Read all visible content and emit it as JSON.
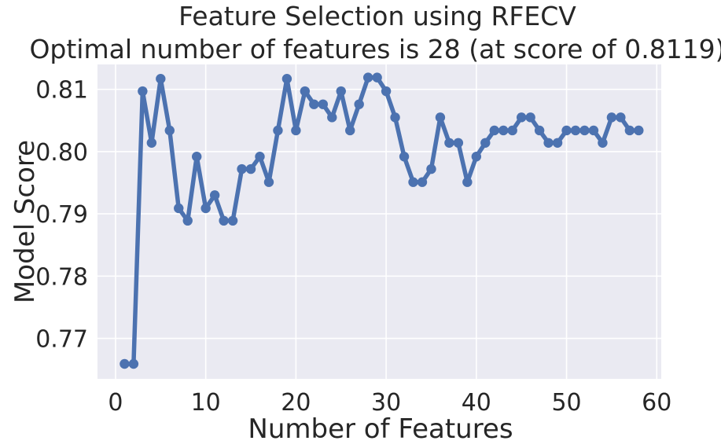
{
  "chart_data": {
    "type": "line",
    "title": "Feature Selection using RFECV",
    "subtitle": "Optimal number of features is 28 (at score of 0.8119)",
    "xlabel": "Number of Features",
    "ylabel": "Model Score",
    "xlim": [
      -2,
      60.5
    ],
    "ylim": [
      0.7635,
      0.814
    ],
    "xticks": [
      0,
      10,
      20,
      30,
      40,
      50,
      60
    ],
    "xtick_labels": [
      "0",
      "10",
      "20",
      "30",
      "40",
      "50",
      "60"
    ],
    "yticks": [
      0.77,
      0.78,
      0.79,
      0.8,
      0.81
    ],
    "ytick_labels": [
      "0.77",
      "0.78",
      "0.79",
      "0.80",
      "0.81"
    ],
    "grid": true,
    "colors": {
      "line": "#4c72b0",
      "plot_bg": "#eaeaf2",
      "grid": "#ffffff",
      "text": "#262626"
    },
    "x": [
      1,
      2,
      3,
      4,
      5,
      6,
      7,
      8,
      9,
      10,
      11,
      12,
      13,
      14,
      15,
      16,
      17,
      18,
      19,
      20,
      21,
      22,
      23,
      24,
      25,
      26,
      27,
      28,
      29,
      30,
      31,
      32,
      33,
      34,
      35,
      36,
      37,
      38,
      39,
      40,
      41,
      42,
      43,
      44,
      45,
      46,
      47,
      48,
      49,
      50,
      51,
      52,
      53,
      54,
      55,
      56,
      57,
      58
    ],
    "y": [
      0.7659,
      0.7659,
      0.8097,
      0.8014,
      0.8117,
      0.8034,
      0.7909,
      0.7889,
      0.7992,
      0.7909,
      0.793,
      0.7889,
      0.7889,
      0.7972,
      0.7972,
      0.7992,
      0.7951,
      0.8034,
      0.8117,
      0.8034,
      0.8097,
      0.8076,
      0.8076,
      0.8055,
      0.8097,
      0.8034,
      0.8076,
      0.8119,
      0.8119,
      0.8097,
      0.8055,
      0.7992,
      0.7951,
      0.7951,
      0.7972,
      0.8055,
      0.8014,
      0.8014,
      0.7951,
      0.7992,
      0.8014,
      0.8034,
      0.8034,
      0.8034,
      0.8055,
      0.8055,
      0.8034,
      0.8014,
      0.8014,
      0.8034,
      0.8034,
      0.8034,
      0.8034,
      0.8014,
      0.8055,
      0.8055,
      0.8034,
      0.8034
    ]
  }
}
